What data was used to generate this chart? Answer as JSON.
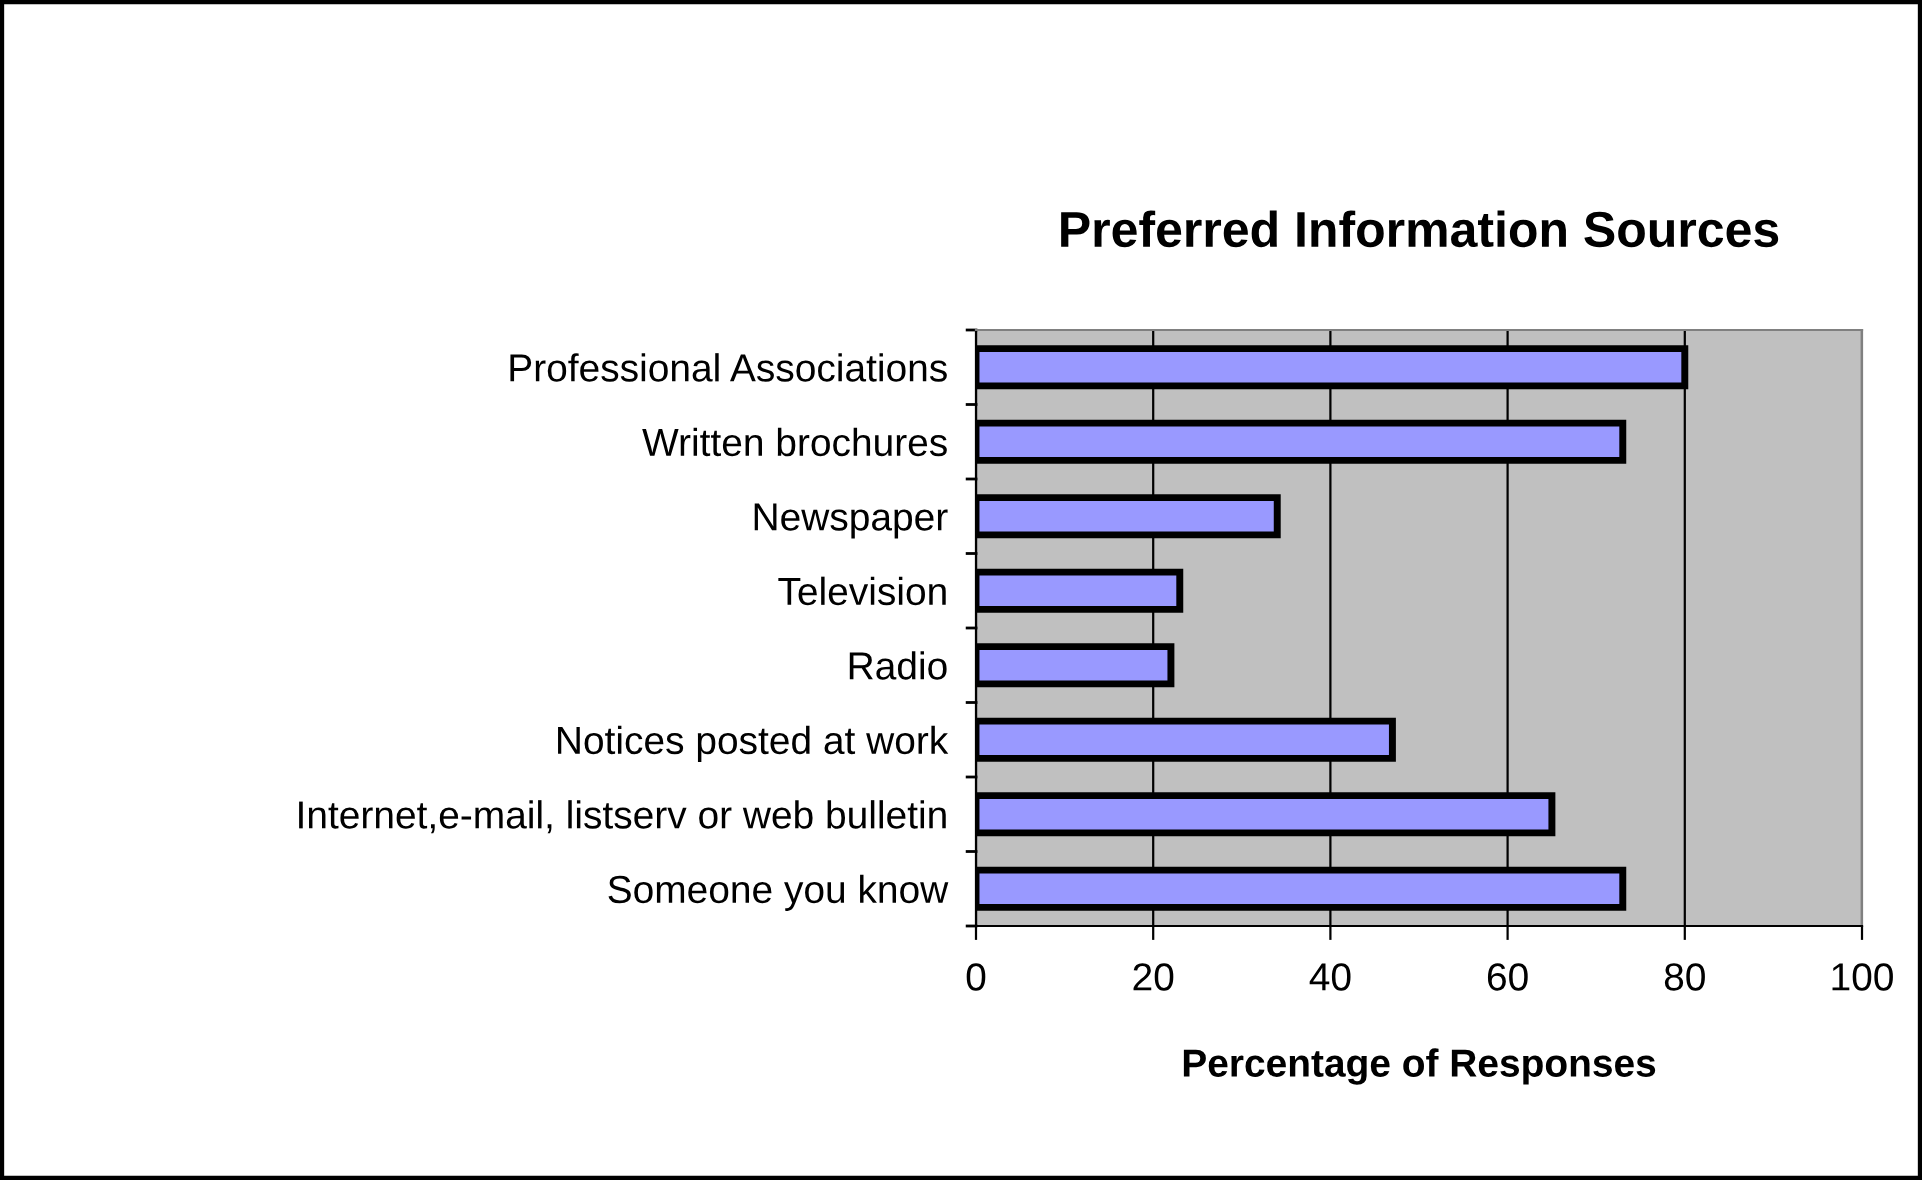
{
  "chart_data": {
    "type": "bar",
    "orientation": "horizontal",
    "title": "Preferred Information Sources",
    "xlabel": "Percentage of Responses",
    "categories": [
      "Professional Associations",
      "Written brochures",
      "Newspaper",
      "Television",
      "Radio",
      "Notices posted at work",
      "Internet,e-mail, listserv or web bulletin",
      "Someone you know"
    ],
    "values": [
      80,
      73,
      34,
      23,
      22,
      47,
      65,
      73
    ],
    "color": "#9999ff",
    "xlim": [
      0,
      100
    ],
    "xticks": [
      0,
      20,
      40,
      60,
      80,
      100
    ],
    "grid": "x",
    "legend": false
  }
}
